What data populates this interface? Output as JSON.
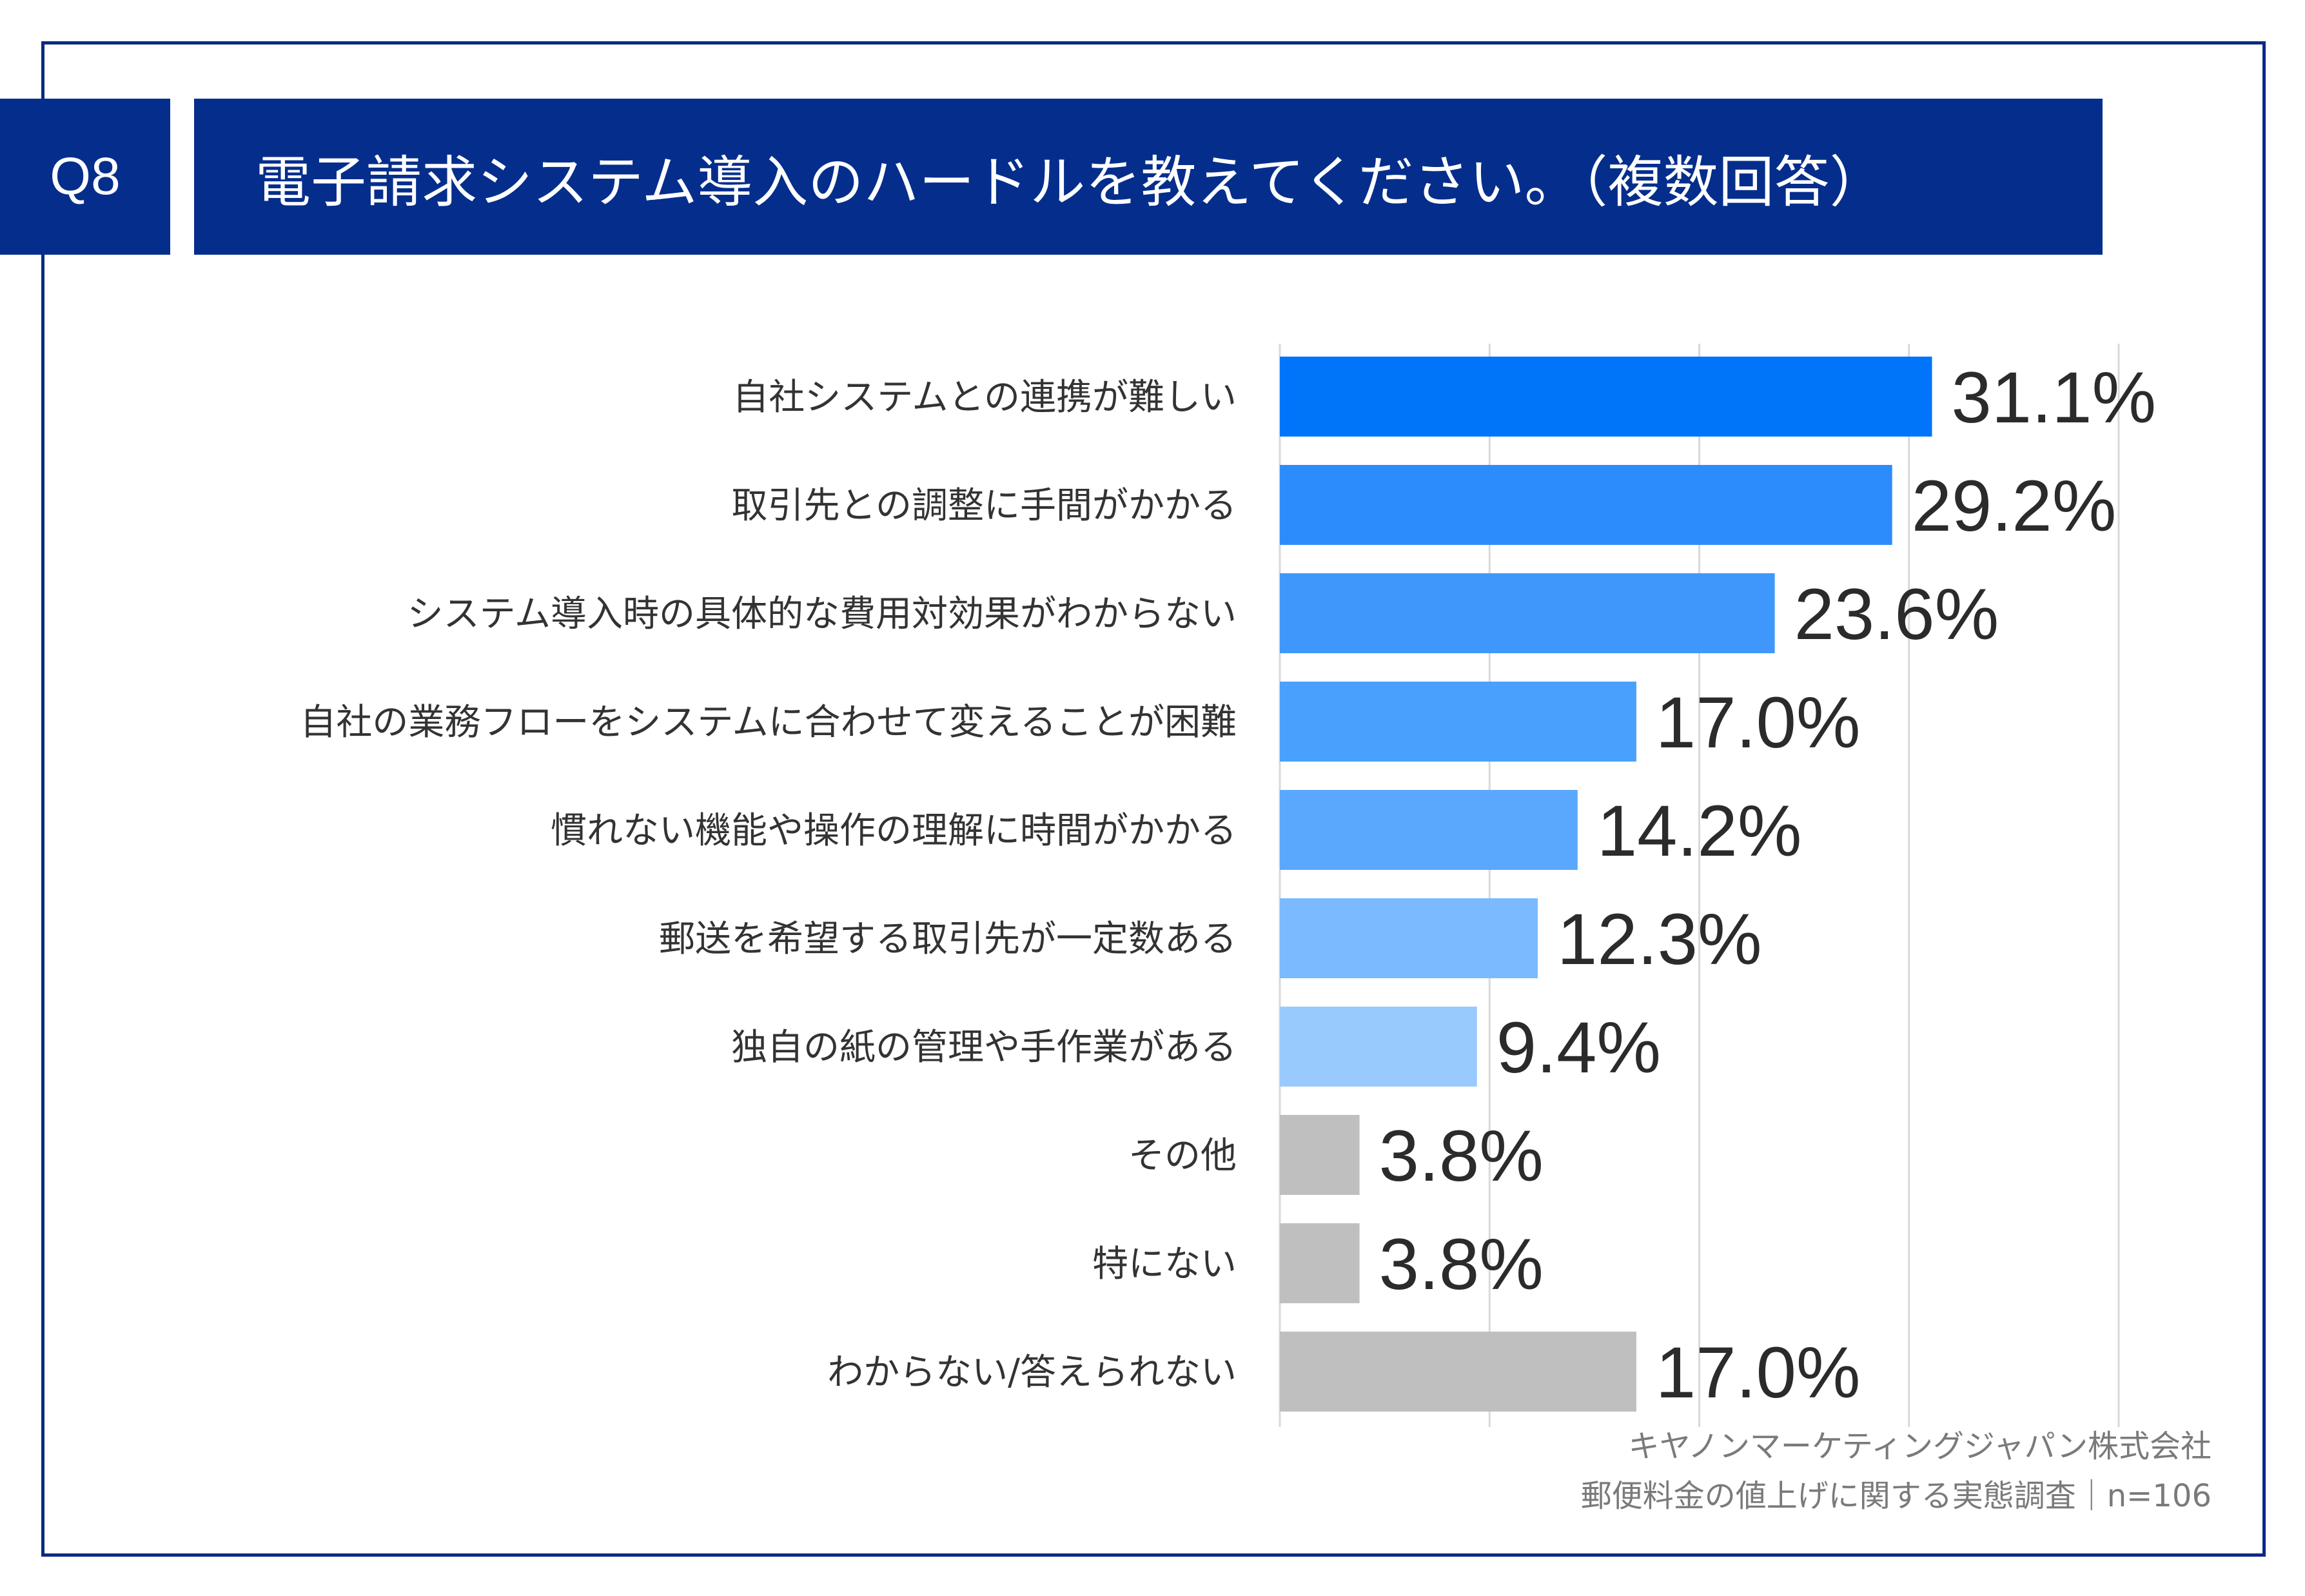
{
  "header": {
    "question_label": "Q8",
    "title": "電子請求システム導入のハードルを教えてください。（複数回答）"
  },
  "chart_data": {
    "type": "bar",
    "orientation": "horizontal",
    "categories": [
      "自社システムとの連携が難しい",
      "取引先との調整に手間がかかる",
      "システム導入時の具体的な費用対効果がわからない",
      "自社の業務フローをシステムに合わせて変えることが困難",
      "慣れない機能や操作の理解に時間がかかる",
      "郵送を希望する取引先が一定数ある",
      "独自の紙の管理や手作業がある",
      "その他",
      "特にない",
      "わからない/答えられない"
    ],
    "values": [
      31.1,
      29.2,
      23.6,
      17.0,
      14.2,
      12.3,
      9.4,
      3.8,
      3.8,
      17.0
    ],
    "value_labels": [
      "31.1%",
      "29.2%",
      "23.6%",
      "17.0%",
      "14.2%",
      "12.3%",
      "9.4%",
      "3.8%",
      "3.8%",
      "17.0%"
    ],
    "bar_colors": [
      "#0075fa",
      "#2d8cfb",
      "#3f97fc",
      "#4aa0fd",
      "#5aa8fd",
      "#7bbafe",
      "#99cafe",
      "#bfbfbf",
      "#bfbfbf",
      "#bfbfbf"
    ],
    "xlim": [
      0,
      40
    ],
    "grid": true,
    "title": "",
    "xlabel": "",
    "ylabel": ""
  },
  "footer": {
    "company": "キヤノンマーケティングジャパン株式会社",
    "survey": "郵便料金の値上げに関する実態調査｜n=106"
  },
  "colors": {
    "frame": "#0a2a82",
    "banner": "#052e8c",
    "label_text": "#333333",
    "value_text": "#2b2b2b",
    "gridline": "#d9d9d9"
  }
}
